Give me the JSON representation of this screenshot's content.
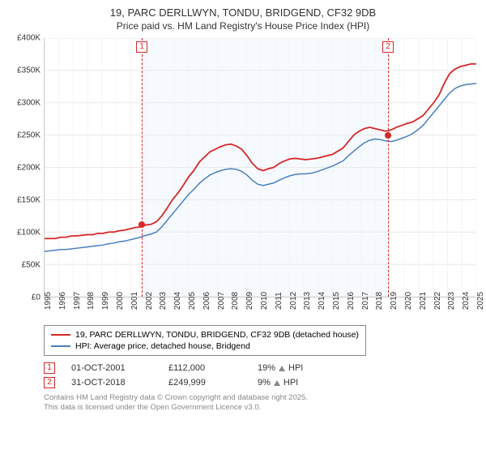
{
  "title": "19, PARC DERLLWYN, TONDU, BRIDGEND, CF32 9DB",
  "subtitle": "Price paid vs. HM Land Registry's House Price Index (HPI)",
  "chart": {
    "type": "line",
    "background_color": "#ffffff",
    "grid_color_major": "#e8e8e8",
    "grid_color_minor": "#f4f4f4",
    "shade_color": "#f6fafe",
    "ylim": [
      0,
      400000
    ],
    "ytick_step": 50000,
    "y_ticks": [
      "£0",
      "£50K",
      "£100K",
      "£150K",
      "£200K",
      "£250K",
      "£300K",
      "£350K",
      "£400K"
    ],
    "x_years": [
      1995,
      1996,
      1997,
      1998,
      1999,
      2000,
      2001,
      2002,
      2003,
      2004,
      2005,
      2006,
      2007,
      2008,
      2009,
      2010,
      2011,
      2012,
      2013,
      2014,
      2015,
      2016,
      2017,
      2018,
      2019,
      2020,
      2021,
      2022,
      2023,
      2024,
      2025
    ],
    "series": [
      {
        "id": "property",
        "label": "19, PARC DERLLWYN, TONDU, BRIDGEND, CF32 9DB (detached house)",
        "color": "#d62728",
        "line_width": 1.8,
        "data": [
          90,
          90,
          90,
          92,
          92,
          94,
          94,
          95,
          96,
          96,
          98,
          98,
          100,
          100,
          102,
          103,
          105,
          107,
          108,
          111,
          112,
          116,
          125,
          137,
          150,
          160,
          172,
          185,
          195,
          208,
          216,
          224,
          228,
          232,
          235,
          236,
          233,
          228,
          218,
          206,
          198,
          195,
          198,
          200,
          206,
          210,
          213,
          214,
          213,
          212,
          213,
          214,
          216,
          218,
          220,
          225,
          230,
          240,
          250,
          256,
          260,
          262,
          260,
          258,
          256,
          258,
          262,
          265,
          268,
          270,
          275,
          280,
          290,
          300,
          312,
          330,
          345,
          352,
          356,
          358,
          360,
          360
        ]
      },
      {
        "id": "hpi",
        "label": "HPI: Average price, detached house, Bridgend",
        "color": "#4a7fbf",
        "line_width": 1.5,
        "data": [
          70,
          71,
          72,
          73,
          73,
          74,
          75,
          76,
          77,
          78,
          79,
          80,
          82,
          83,
          85,
          86,
          88,
          90,
          92,
          95,
          97,
          100,
          108,
          118,
          128,
          138,
          148,
          158,
          166,
          175,
          182,
          188,
          192,
          195,
          197,
          198,
          197,
          194,
          188,
          180,
          174,
          172,
          174,
          176,
          180,
          184,
          187,
          189,
          190,
          190,
          191,
          193,
          196,
          199,
          202,
          206,
          210,
          218,
          225,
          232,
          238,
          242,
          244,
          243,
          241,
          240,
          242,
          245,
          248,
          252,
          258,
          265,
          275,
          285,
          295,
          305,
          315,
          322,
          326,
          328,
          329,
          330
        ]
      }
    ],
    "markers": [
      {
        "id": "1",
        "year": 2001.75,
        "color": "#d62728"
      },
      {
        "id": "2",
        "year": 2018.83,
        "color": "#d62728"
      }
    ],
    "points": [
      {
        "year": 2001.75,
        "value": 112000,
        "color": "#d62728"
      },
      {
        "year": 2018.83,
        "value": 249999,
        "color": "#d62728"
      }
    ]
  },
  "legend": {
    "items": [
      {
        "color": "#d62728",
        "label": "19, PARC DERLLWYN, TONDU, BRIDGEND, CF32 9DB (detached house)"
      },
      {
        "color": "#4a7fbf",
        "label": "HPI: Average price, detached house, Bridgend"
      }
    ]
  },
  "sales": [
    {
      "marker": "1",
      "marker_color": "#d62728",
      "date": "01-OCT-2001",
      "price": "£112,000",
      "delta_pct": "19%",
      "delta_dir": "up",
      "delta_color": "#888",
      "delta_label": "HPI"
    },
    {
      "marker": "2",
      "marker_color": "#d62728",
      "date": "31-OCT-2018",
      "price": "£249,999",
      "delta_pct": "9%",
      "delta_dir": "up",
      "delta_color": "#888",
      "delta_label": "HPI"
    }
  ],
  "footer": {
    "line1": "Contains HM Land Registry data © Crown copyright and database right 2025.",
    "line2": "This data is licensed under the Open Government Licence v3.0."
  }
}
